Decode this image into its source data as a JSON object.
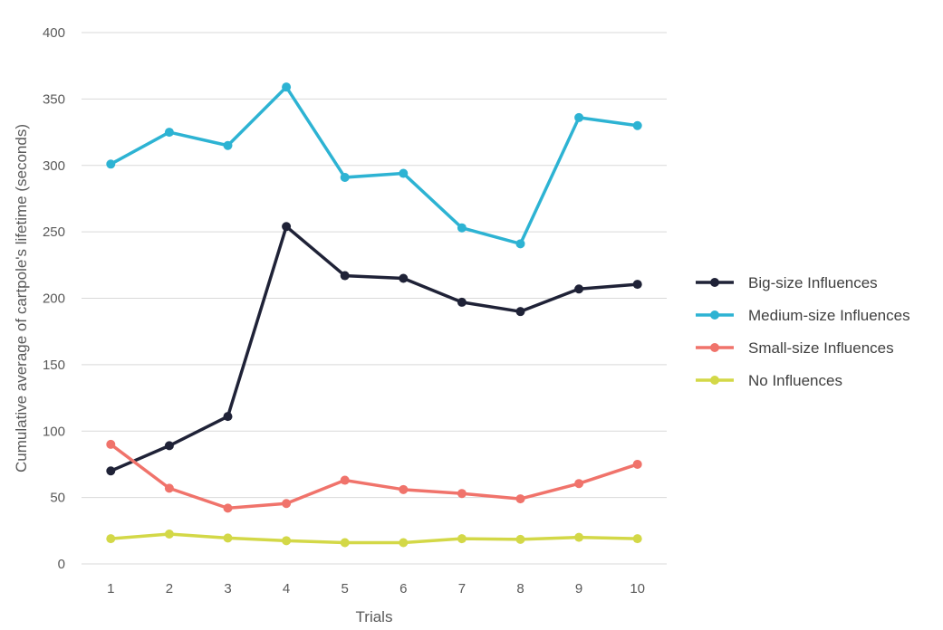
{
  "chart_data": {
    "type": "line",
    "title": "",
    "xlabel": "Trials",
    "ylabel": "Cumulative average of cartpole's lifetime (seconds)",
    "x": [
      1,
      2,
      3,
      4,
      5,
      6,
      7,
      8,
      9,
      10
    ],
    "ylim": [
      0,
      400
    ],
    "yticks": [
      0,
      50,
      100,
      150,
      200,
      250,
      300,
      350,
      400
    ],
    "grid": true,
    "legend_position": "right",
    "series": [
      {
        "name": "Big-size Influences",
        "color": "#1f2237",
        "values": [
          70,
          89,
          111,
          254,
          217,
          215,
          197,
          190,
          207,
          210.5
        ]
      },
      {
        "name": "Medium-size Influences",
        "color": "#2db3d3",
        "values": [
          301,
          325,
          315,
          359,
          291,
          294,
          253,
          241,
          336,
          330
        ]
      },
      {
        "name": "Small-size Influences",
        "color": "#f0736b",
        "values": [
          90,
          57,
          42,
          45.5,
          63,
          56,
          53,
          49,
          60.5,
          75
        ]
      },
      {
        "name": "No Influences",
        "color": "#d3d847",
        "values": [
          19,
          22.5,
          19.5,
          17.5,
          16,
          16,
          19,
          18.5,
          20,
          19
        ]
      }
    ]
  }
}
